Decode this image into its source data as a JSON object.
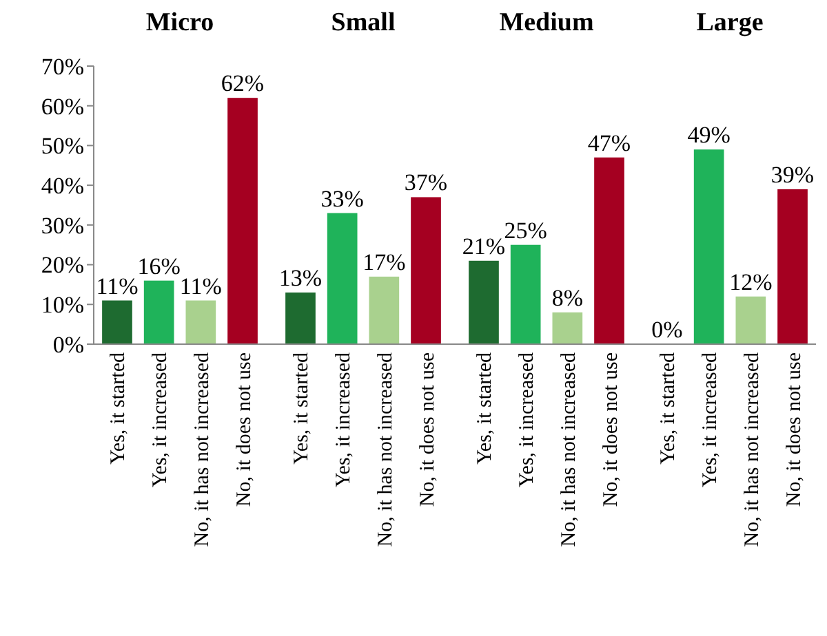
{
  "chart_data": [
    {
      "type": "bar",
      "title": "Micro",
      "categories": [
        "Yes, it started",
        "Yes, it increased",
        "No, it has not increased",
        "No, it does not use"
      ],
      "values": [
        11,
        16,
        11,
        62
      ],
      "colors": [
        "#1e6b30",
        "#1fb35a",
        "#a9d18e",
        "#a50021"
      ],
      "value_labels": [
        "11%",
        "16%",
        "11%",
        "62%"
      ],
      "ylim": [
        0,
        70
      ],
      "yticks": [
        {
          "value": 0,
          "label": "0%"
        },
        {
          "value": 10,
          "label": "10%"
        },
        {
          "value": 20,
          "label": "20%"
        },
        {
          "value": 30,
          "label": "30%"
        },
        {
          "value": 40,
          "label": "40%"
        },
        {
          "value": 50,
          "label": "50%"
        },
        {
          "value": 60,
          "label": "60%"
        },
        {
          "value": 70,
          "label": "70%"
        }
      ]
    },
    {
      "type": "bar",
      "title": "Small",
      "categories": [
        "Yes, it started",
        "Yes, it increased",
        "No, it has not increased",
        "No, it does not use"
      ],
      "values": [
        13,
        33,
        17,
        37
      ],
      "colors": [
        "#1e6b30",
        "#1fb35a",
        "#a9d18e",
        "#a50021"
      ],
      "value_labels": [
        "13%",
        "33%",
        "17%",
        "37%"
      ],
      "ylim": [
        0,
        70
      ],
      "tick_labels": "x"
    },
    {
      "type": "bar",
      "title": "Medium",
      "categories": [
        "Yes, it started",
        "Yes, it increased",
        "No, it has not increased",
        "No, it does not use"
      ],
      "values": [
        21,
        25,
        8,
        47
      ],
      "colors": [
        "#1e6b30",
        "#1fb35a",
        "#a9d18e",
        "#a50021"
      ],
      "value_labels": [
        "21%",
        "25%",
        "8%",
        "47%"
      ],
      "ylim": [
        0,
        70
      ],
      "tick_labels": "x"
    },
    {
      "type": "bar",
      "title": "Large",
      "categories": [
        "Yes, it started",
        "Yes, it increased",
        "No, it has not increased",
        "No, it does not use"
      ],
      "values": [
        0,
        49,
        12,
        39
      ],
      "colors": [
        "#1e6b30",
        "#1fb35a",
        "#a9d18e",
        "#a50021"
      ],
      "value_labels": [
        "0%",
        "49%",
        "12%",
        "39%"
      ],
      "ylim": [
        0,
        70
      ],
      "tick_labels": "x"
    }
  ]
}
